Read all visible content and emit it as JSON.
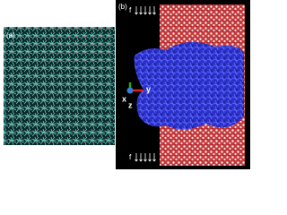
{
  "panel_a": {
    "label": "(a)"
  },
  "panel_b": {
    "label": "(b)",
    "force_top": "f",
    "force_bottom": "f",
    "axes": {
      "x": "x",
      "y": "y",
      "z": "z"
    }
  }
}
